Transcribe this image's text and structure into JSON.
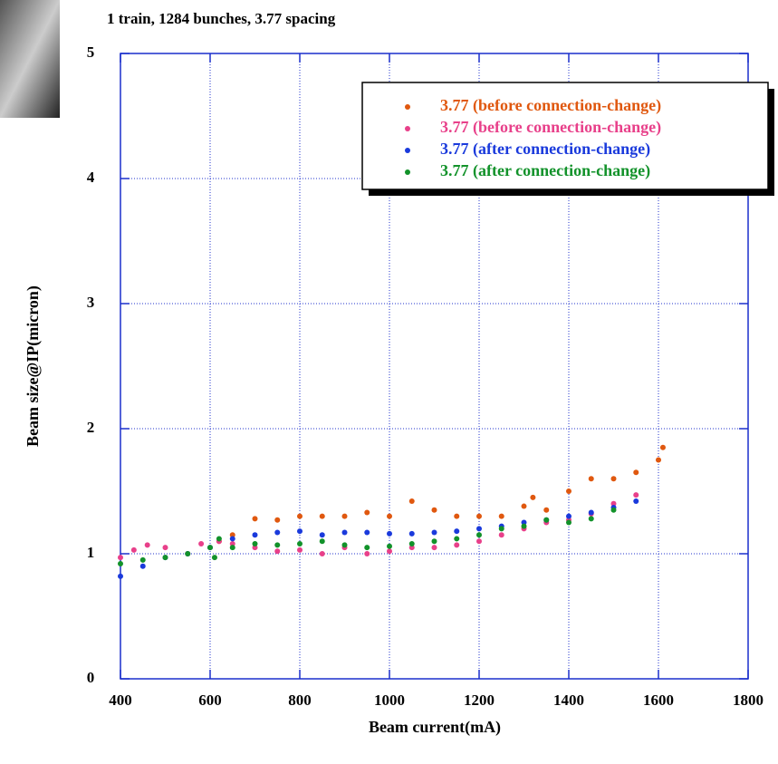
{
  "chart_data": {
    "type": "scatter",
    "title": "1 train, 1284 bunches, 3.77 spacing",
    "x_label": "Beam current(mA)",
    "y_label": "Beam size@IP(micron)",
    "xlim": [
      400,
      1800
    ],
    "xticks": [
      400,
      600,
      800,
      1000,
      1200,
      1400,
      1600,
      1800
    ],
    "ylim": [
      0,
      5
    ],
    "yticks": [
      0,
      1,
      2,
      3,
      4,
      5
    ],
    "grid": true,
    "legend": "upper right",
    "series": [
      {
        "name": "3.77 (before connection-change)",
        "color": "#e0580f",
        "x": [
          620,
          650,
          700,
          750,
          800,
          850,
          900,
          950,
          1000,
          1050,
          1100,
          1150,
          1200,
          1250,
          1300,
          1320,
          1350,
          1400,
          1450,
          1500,
          1550,
          1600,
          1610
        ],
        "values": [
          1.1,
          1.15,
          1.28,
          1.27,
          1.3,
          1.3,
          1.3,
          1.33,
          1.3,
          1.42,
          1.35,
          1.3,
          1.3,
          1.3,
          1.38,
          1.45,
          1.35,
          1.5,
          1.6,
          1.6,
          1.65,
          1.75,
          1.85
        ]
      },
      {
        "name": "3.77 (before connection-change)",
        "color": "#e8408a",
        "x": [
          400,
          430,
          460,
          500,
          550,
          580,
          620,
          650,
          700,
          750,
          800,
          850,
          900,
          950,
          1000,
          1050,
          1100,
          1150,
          1200,
          1250,
          1300,
          1350,
          1400,
          1450,
          1500,
          1550
        ],
        "values": [
          0.97,
          1.03,
          1.07,
          1.05,
          1.0,
          1.08,
          1.1,
          1.08,
          1.05,
          1.02,
          1.03,
          1.0,
          1.05,
          1.0,
          1.02,
          1.05,
          1.05,
          1.07,
          1.1,
          1.15,
          1.2,
          1.25,
          1.27,
          1.32,
          1.4,
          1.47
        ]
      },
      {
        "name": "3.77 (after connection-change)",
        "color": "#1a3adc",
        "x": [
          400,
          450,
          500,
          550,
          600,
          650,
          700,
          750,
          800,
          850,
          900,
          950,
          1000,
          1050,
          1100,
          1150,
          1200,
          1250,
          1300,
          1350,
          1400,
          1450,
          1500,
          1550
        ],
        "values": [
          0.82,
          0.9,
          0.97,
          1.0,
          1.05,
          1.12,
          1.15,
          1.17,
          1.18,
          1.15,
          1.17,
          1.17,
          1.16,
          1.16,
          1.17,
          1.18,
          1.2,
          1.22,
          1.25,
          1.27,
          1.3,
          1.33,
          1.37,
          1.42
        ]
      },
      {
        "name": "3.77 (after connection-change)",
        "color": "#12922a",
        "x": [
          400,
          450,
          500,
          550,
          600,
          610,
          620,
          650,
          700,
          750,
          800,
          850,
          900,
          950,
          1000,
          1050,
          1100,
          1150,
          1200,
          1250,
          1300,
          1350,
          1400,
          1450,
          1500
        ],
        "values": [
          0.92,
          0.95,
          0.97,
          1.0,
          1.05,
          0.97,
          1.12,
          1.05,
          1.08,
          1.07,
          1.08,
          1.1,
          1.07,
          1.05,
          1.06,
          1.08,
          1.1,
          1.12,
          1.15,
          1.2,
          1.22,
          1.27,
          1.25,
          1.28,
          1.35
        ]
      }
    ]
  }
}
